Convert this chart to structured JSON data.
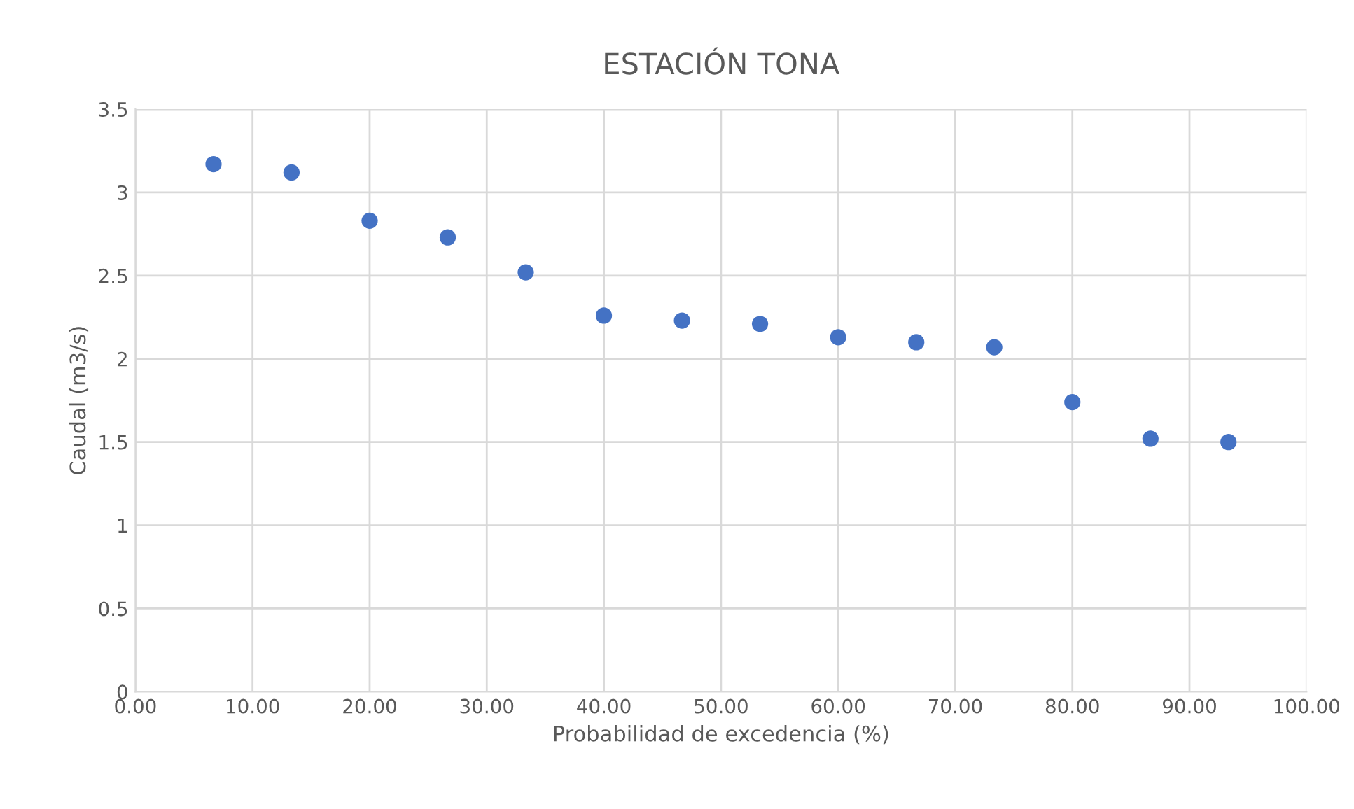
{
  "chart_data": {
    "type": "scatter",
    "title": "ESTACIÓN TONA",
    "xlabel": "Probabilidad de excedencia (%)",
    "ylabel": "Caudal (m3/s)",
    "x": [
      6.67,
      13.33,
      20,
      26.67,
      33.33,
      40,
      46.67,
      53.33,
      60,
      66.67,
      73.33,
      80,
      86.67,
      93.33
    ],
    "series": [
      {
        "color": "#4472c4",
        "values": [
          3.17,
          3.12,
          2.83,
          2.73,
          2.52,
          2.26,
          2.23,
          2.21,
          2.13,
          2.1,
          2.07,
          1.74,
          1.52,
          1.5
        ]
      }
    ],
    "xlim": [
      0,
      100
    ],
    "xticks": [
      {
        "value": 0,
        "label": "0.00"
      },
      {
        "value": 10,
        "label": "10.00"
      },
      {
        "value": 20,
        "label": "20.00"
      },
      {
        "value": 30,
        "label": "30.00"
      },
      {
        "value": 40,
        "label": "40.00"
      },
      {
        "value": 50,
        "label": "50.00"
      },
      {
        "value": 60,
        "label": "60.00"
      },
      {
        "value": 70,
        "label": "70.00"
      },
      {
        "value": 80,
        "label": "80.00"
      },
      {
        "value": 90,
        "label": "90.00"
      },
      {
        "value": 100,
        "label": "100.00"
      }
    ],
    "ylim": [
      0,
      3.5
    ],
    "yticks": [
      0,
      0.5,
      1,
      1.5,
      2,
      2.5,
      3,
      3.5
    ],
    "grid": true,
    "marker": "circle",
    "legend": false
  }
}
